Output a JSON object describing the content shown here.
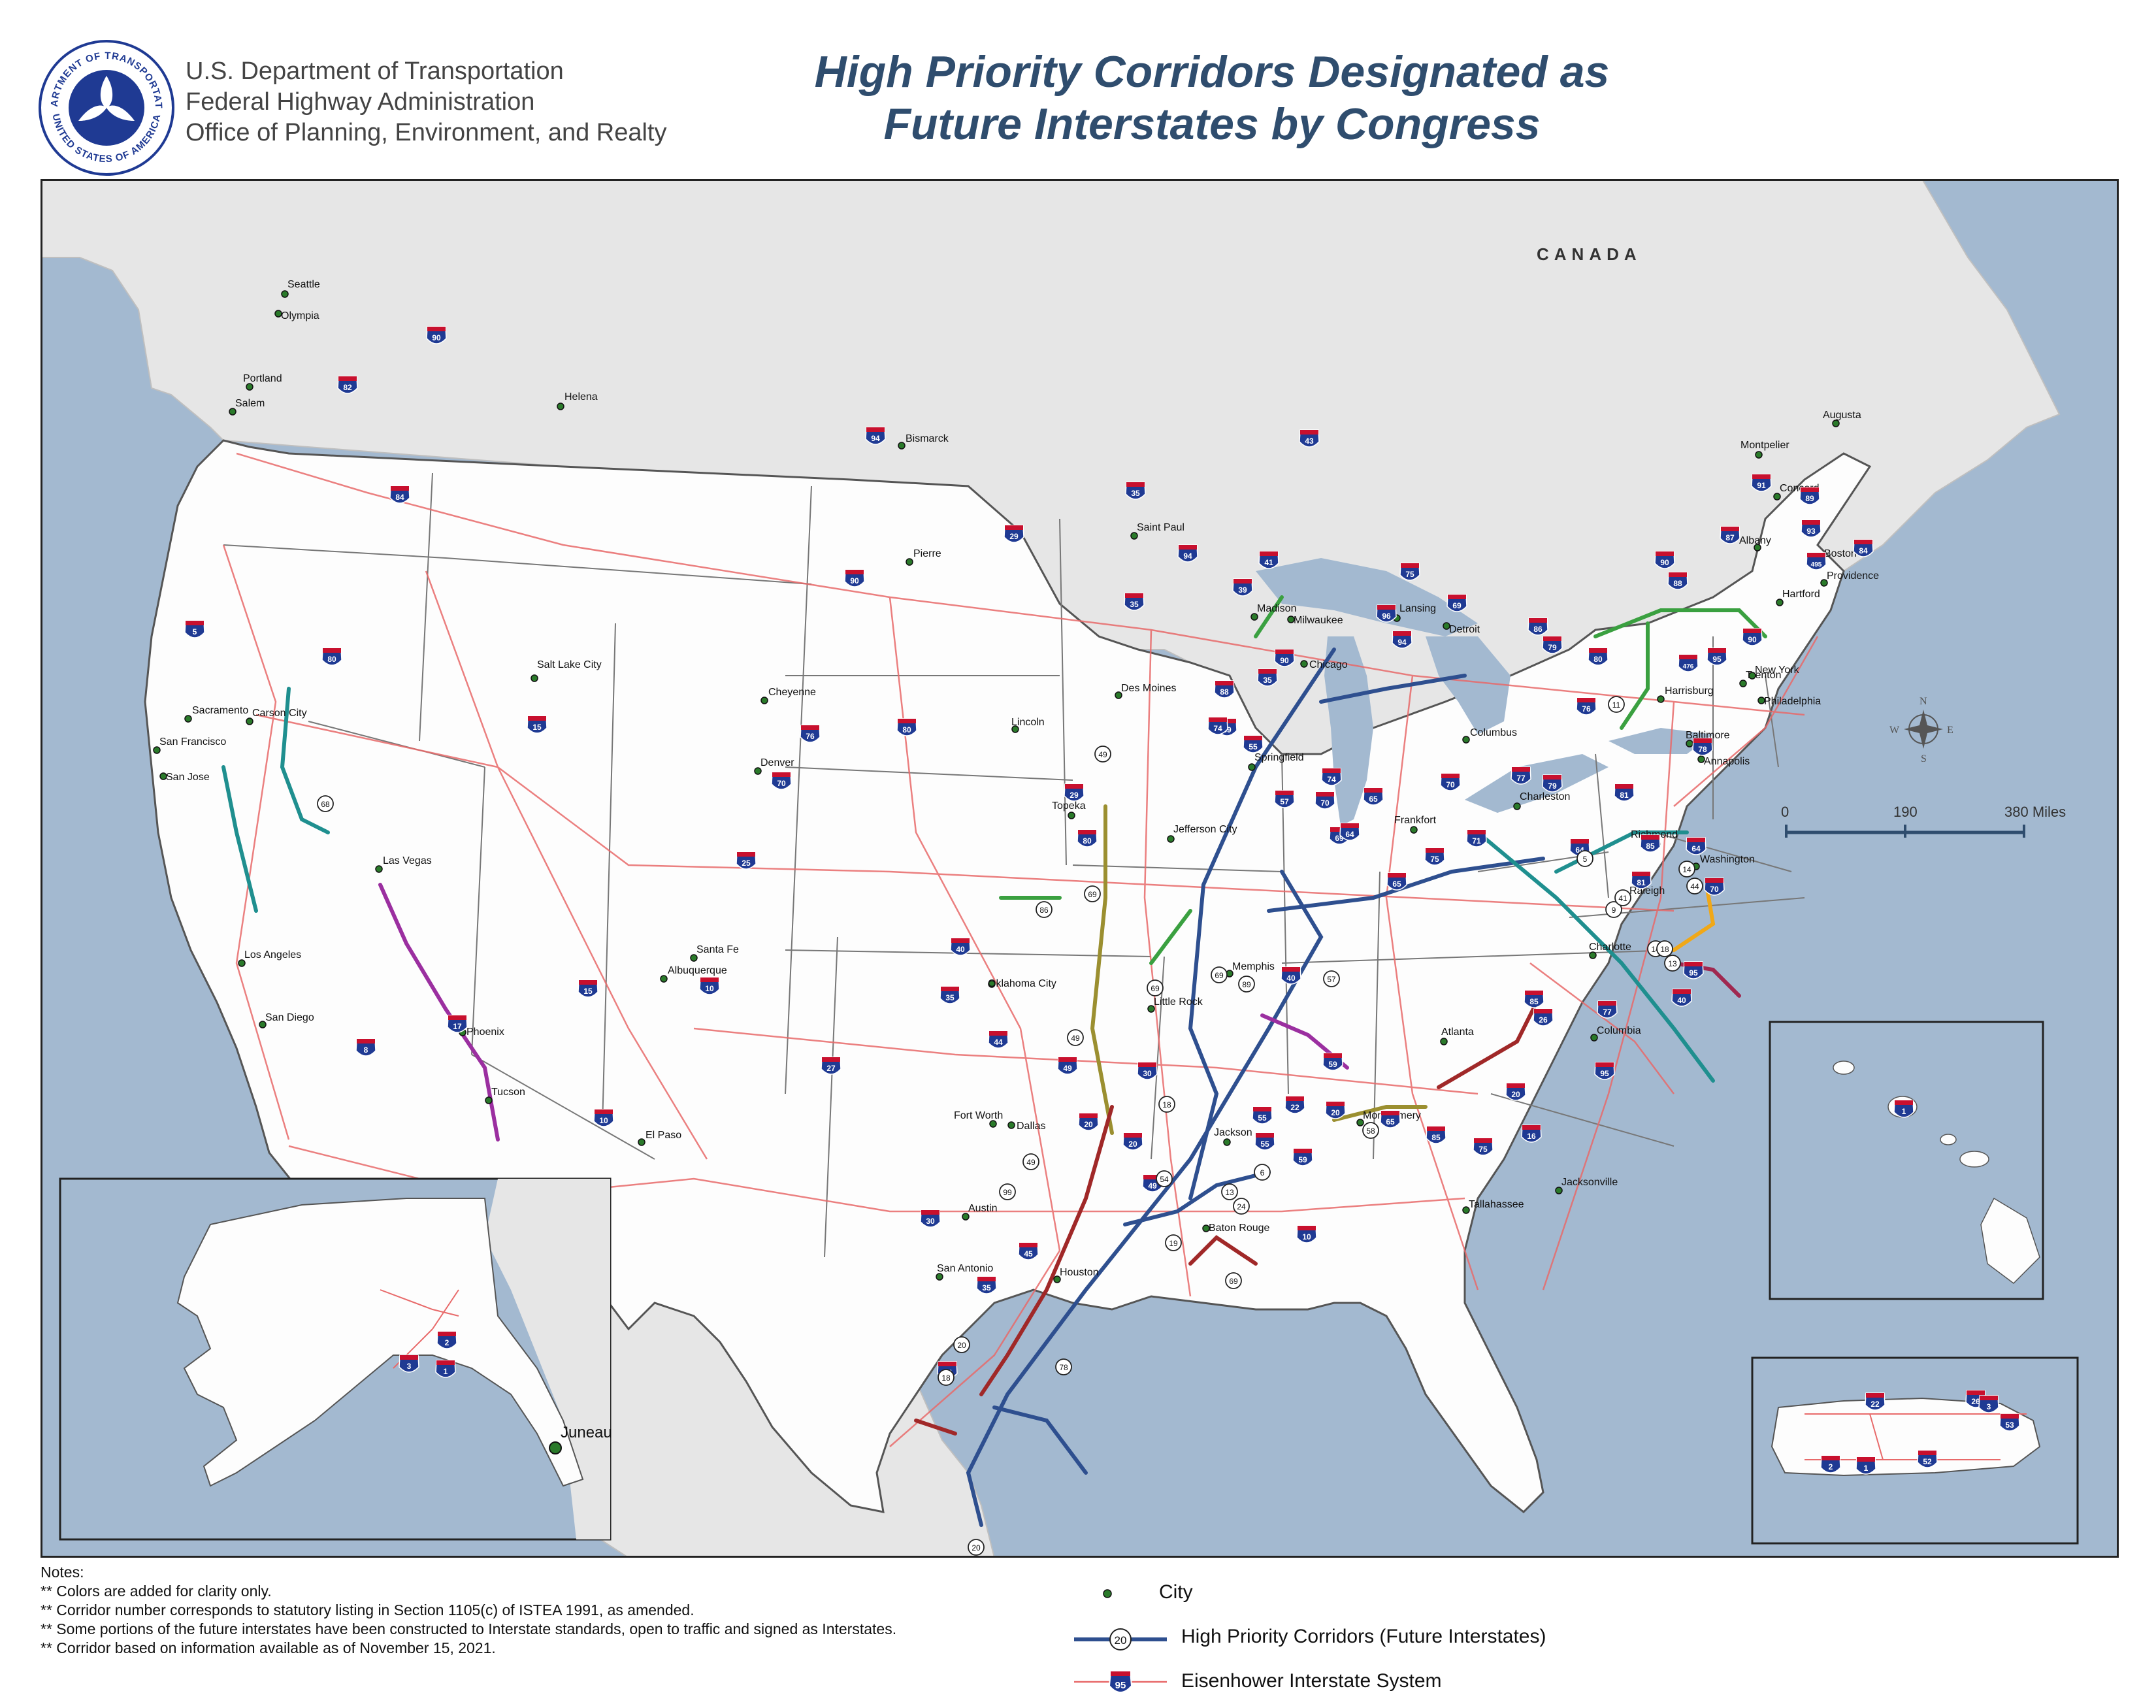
{
  "header": {
    "agency_lines": [
      "U.S. Department of Transportation",
      "Federal Highway Administration",
      "Office of Planning, Environment, and Realty"
    ],
    "seal_text_top": "DEPARTMENT OF TRANSPORTATION",
    "seal_text_bottom": "UNITED STATES OF AMERICA",
    "title_line1": "High Priority Corridors Designated as",
    "title_line2": "Future Interstates by Congress"
  },
  "map": {
    "country_label": "CANADA",
    "colors": {
      "water": "#a3b9d0",
      "land_us": "#fdfdfd",
      "land_foreign": "#e6e6e6",
      "interstate": "#e86a6a",
      "corridor_blue": "#2e4f8f",
      "border": "#666666"
    },
    "cities": [
      {
        "name": "Seattle"
      },
      {
        "name": "Olympia"
      },
      {
        "name": "Portland"
      },
      {
        "name": "Salem"
      },
      {
        "name": "Helena"
      },
      {
        "name": "Bismarck"
      },
      {
        "name": "Pierre"
      },
      {
        "name": "Saint Paul"
      },
      {
        "name": "Madison"
      },
      {
        "name": "Milwaukee"
      },
      {
        "name": "Lansing"
      },
      {
        "name": "Detroit"
      },
      {
        "name": "Chicago"
      },
      {
        "name": "Des Moines"
      },
      {
        "name": "Lincoln"
      },
      {
        "name": "Cheyenne"
      },
      {
        "name": "Salt Lake City"
      },
      {
        "name": "Carson City"
      },
      {
        "name": "Sacramento"
      },
      {
        "name": "San Francisco"
      },
      {
        "name": "San Jose"
      },
      {
        "name": "Denver"
      },
      {
        "name": "Topeka"
      },
      {
        "name": "Jefferson City"
      },
      {
        "name": "Springfield"
      },
      {
        "name": "Columbus"
      },
      {
        "name": "Frankfort"
      },
      {
        "name": "Charleston"
      },
      {
        "name": "Las Vegas"
      },
      {
        "name": "Los Angeles"
      },
      {
        "name": "San Diego"
      },
      {
        "name": "Phoenix"
      },
      {
        "name": "Tucson"
      },
      {
        "name": "Santa Fe"
      },
      {
        "name": "Albuquerque"
      },
      {
        "name": "El Paso"
      },
      {
        "name": "Oklahoma City"
      },
      {
        "name": "Fort Worth"
      },
      {
        "name": "Dallas"
      },
      {
        "name": "Austin"
      },
      {
        "name": "San Antonio"
      },
      {
        "name": "Houston"
      },
      {
        "name": "Little Rock"
      },
      {
        "name": "Memphis"
      },
      {
        "name": "Jackson"
      },
      {
        "name": "Baton Rouge"
      },
      {
        "name": "Montgomery"
      },
      {
        "name": "Atlanta"
      },
      {
        "name": "Tallahassee"
      },
      {
        "name": "Jacksonville"
      },
      {
        "name": "Columbia"
      },
      {
        "name": "Charlotte"
      },
      {
        "name": "Raleigh"
      },
      {
        "name": "Richmond"
      },
      {
        "name": "Washington"
      },
      {
        "name": "Baltimore"
      },
      {
        "name": "Annapolis"
      },
      {
        "name": "Harrisburg"
      },
      {
        "name": "Trenton"
      },
      {
        "name": "Philadelphia"
      },
      {
        "name": "New York"
      },
      {
        "name": "Hartford"
      },
      {
        "name": "Providence"
      },
      {
        "name": "Boston"
      },
      {
        "name": "Albany"
      },
      {
        "name": "Montpelier"
      },
      {
        "name": "Concord"
      },
      {
        "name": "Augusta"
      },
      {
        "name": "Juneau"
      }
    ],
    "interstate_shields": [
      "90",
      "82",
      "84",
      "5",
      "80",
      "15",
      "94",
      "90",
      "29",
      "35",
      "94",
      "39",
      "41",
      "43",
      "75",
      "96",
      "69",
      "94",
      "90",
      "35",
      "80",
      "76",
      "70",
      "25",
      "80",
      "29",
      "35",
      "88",
      "39",
      "74",
      "55",
      "57",
      "70",
      "69",
      "65",
      "74",
      "64",
      "65",
      "75",
      "71",
      "70",
      "77",
      "79",
      "64",
      "81",
      "86",
      "90",
      "79",
      "80",
      "76",
      "88",
      "87",
      "91",
      "89",
      "93",
      "495",
      "84",
      "90",
      "95",
      "476",
      "78",
      "70",
      "81",
      "85",
      "64",
      "95",
      "40",
      "77",
      "26",
      "85",
      "95",
      "20",
      "16",
      "75",
      "85",
      "65",
      "20",
      "59",
      "22",
      "55",
      "55",
      "59",
      "10",
      "49",
      "20",
      "45",
      "35",
      "37",
      "30",
      "20",
      "30",
      "49",
      "44",
      "35",
      "40",
      "40",
      "17",
      "27",
      "10",
      "15",
      "10",
      "8"
    ],
    "corridor_shields": [
      "86",
      "99",
      "69",
      "68",
      "11",
      "49",
      "49",
      "69",
      "57",
      "5",
      "9",
      "41",
      "14",
      "44",
      "13",
      "14",
      "18",
      "18",
      "69",
      "49",
      "54",
      "58",
      "69",
      "19",
      "24",
      "20",
      "20",
      "18",
      "78",
      "89",
      "13",
      "6"
    ],
    "compass_letters": {
      "n": "N",
      "e": "E",
      "s": "S",
      "w": "W"
    },
    "scale_bar": {
      "ticks": [
        "0",
        "190",
        "380 Miles"
      ]
    },
    "alaska_shields": [
      "2",
      "3",
      "1"
    ],
    "hawaii_shields": [
      "1"
    ],
    "puerto_rico_shields": [
      "22",
      "26",
      "3",
      "53",
      "2",
      "1",
      "52"
    ]
  },
  "legend": {
    "city_label": "City",
    "corridor_label": "High Priority Corridors (Future Interstates)",
    "corridor_sample_number": "20",
    "interstate_label": "Eisenhower Interstate System",
    "interstate_sample_number": "95"
  },
  "notes": {
    "heading": "Notes:",
    "lines": [
      "** Colors are added for clarity only.",
      "** Corridor number corresponds to statutory listing in Section 1105(c) of ISTEA 1991, as amended.",
      "** Some portions of the future interstates have been constructed to Interstate standards, open to traffic and signed as Interstates.",
      "** Corridor based on information available as of November 15, 2021."
    ]
  }
}
